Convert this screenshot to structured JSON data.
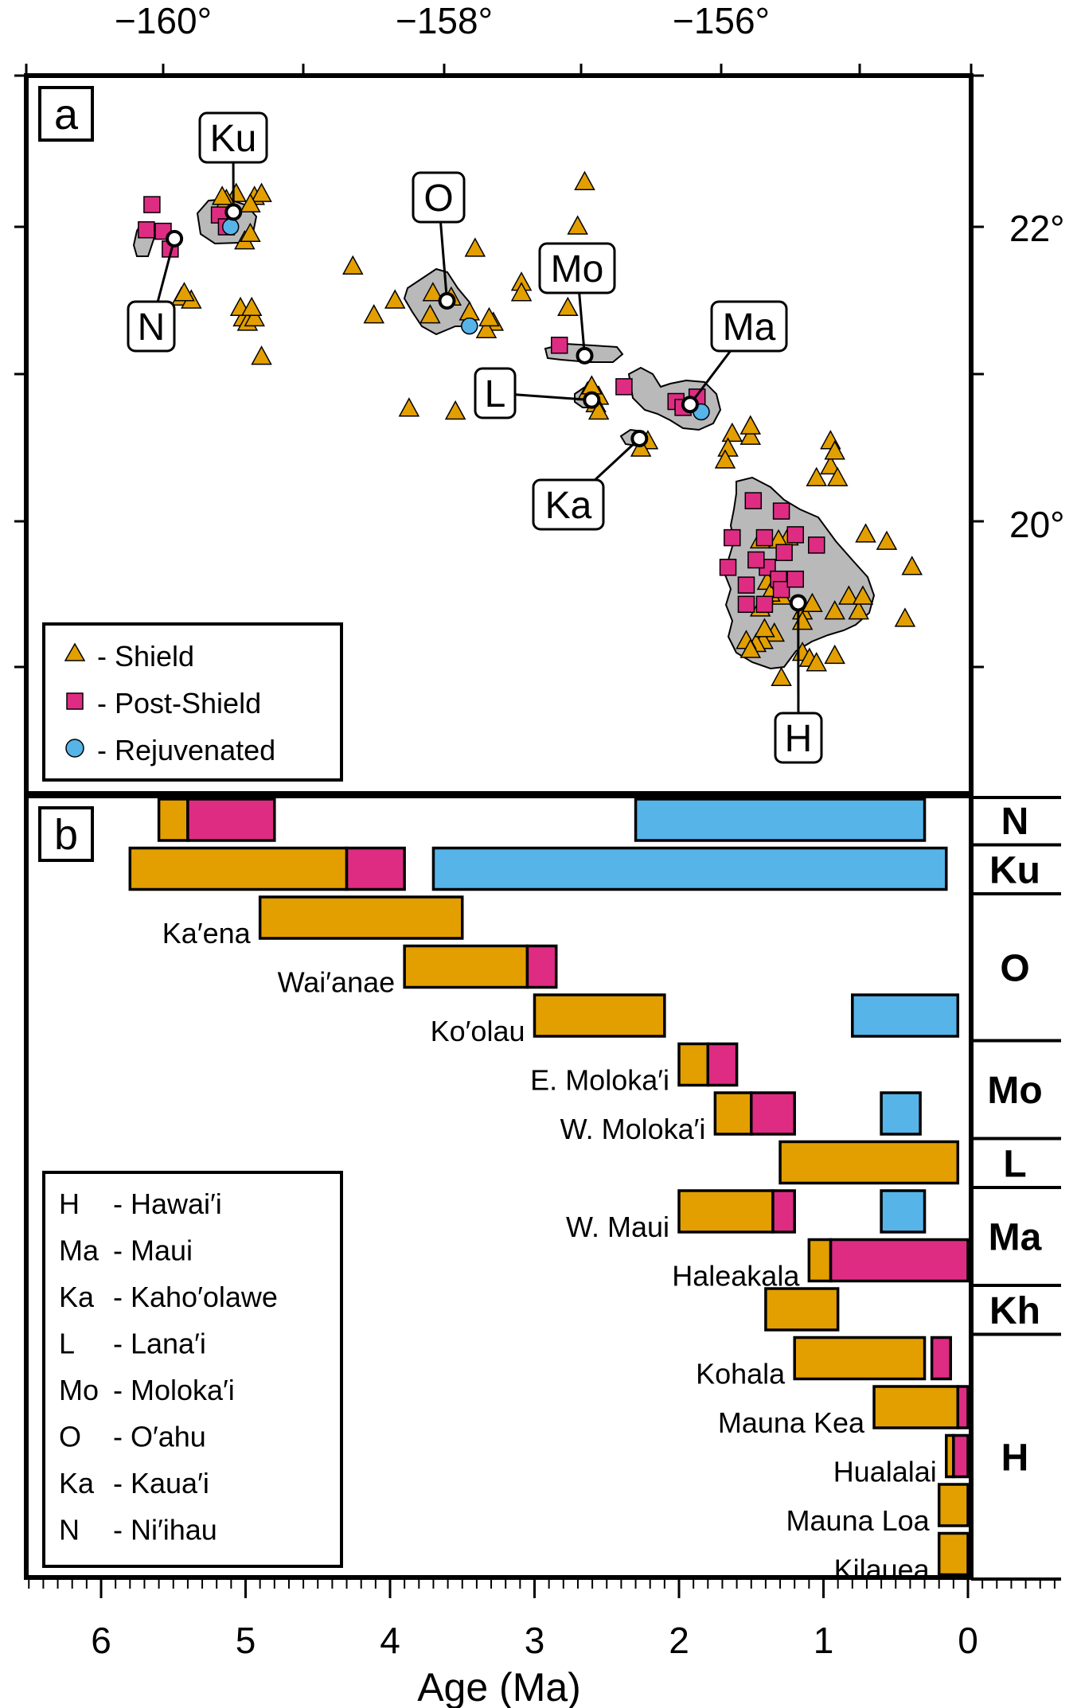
{
  "panel_a": {
    "label": "a",
    "lon_ticks": [
      "−160°",
      "−158°",
      "−156°"
    ],
    "lat_ticks": [
      "22°",
      "20°"
    ],
    "colors": {
      "shield": "#e39f00",
      "post_shield": "#de2c83",
      "rejuvenated": "#56b4e9",
      "land": "#b9b9b9",
      "outline": "#000000"
    },
    "islands": [
      {
        "id": "ni",
        "label": "N",
        "lon": -159.92,
        "lat": 21.92
      },
      {
        "id": "ku",
        "label": "Ku",
        "lon": -159.5,
        "lat": 22.1
      },
      {
        "id": "oa",
        "label": "O",
        "lon": -157.98,
        "lat": 21.5
      },
      {
        "id": "mo",
        "label": "Mo",
        "lon": -157.0,
        "lat": 21.13
      },
      {
        "id": "la",
        "label": "L",
        "lon": -156.95,
        "lat": 20.83
      },
      {
        "id": "ma",
        "label": "Ma",
        "lon": -156.25,
        "lat": 20.8
      },
      {
        "id": "ka",
        "label": "Ka",
        "lon": -156.61,
        "lat": 20.57
      },
      {
        "id": "ha",
        "label": "H",
        "lon": -155.48,
        "lat": 19.46
      }
    ],
    "legend": [
      {
        "symbol": "triangle",
        "text": "- Shield"
      },
      {
        "symbol": "square",
        "text": "- Post-Shield"
      },
      {
        "symbol": "circle",
        "text": "- Rejuvenated"
      }
    ],
    "samples": {
      "shield": [
        [
          -159.87,
          21.52
        ],
        [
          -159.8,
          21.5
        ],
        [
          -159.85,
          21.55
        ],
        [
          -159.43,
          21.38
        ],
        [
          -159.45,
          21.45
        ],
        [
          -159.4,
          21.35
        ],
        [
          -159.35,
          21.38
        ],
        [
          -159.37,
          21.45
        ],
        [
          -159.3,
          21.12
        ],
        [
          -159.48,
          22.22
        ],
        [
          -159.55,
          22.18
        ],
        [
          -159.58,
          22.2
        ],
        [
          -159.35,
          22.2
        ],
        [
          -159.3,
          22.22
        ],
        [
          -159.38,
          22.15
        ],
        [
          -159.42,
          21.9
        ],
        [
          -159.38,
          21.95
        ],
        [
          -158.65,
          21.73
        ],
        [
          -158.5,
          21.4
        ],
        [
          -158.35,
          21.5
        ],
        [
          -158.1,
          21.4
        ],
        [
          -158.08,
          21.55
        ],
        [
          -157.95,
          21.52
        ],
        [
          -157.82,
          21.42
        ],
        [
          -157.78,
          21.85
        ],
        [
          -157.65,
          21.35
        ],
        [
          -157.7,
          21.3
        ],
        [
          -157.68,
          21.38
        ],
        [
          -157.45,
          21.62
        ],
        [
          -157.45,
          21.55
        ],
        [
          -157.0,
          22.3
        ],
        [
          -157.05,
          22.0
        ],
        [
          -157.12,
          21.45
        ],
        [
          -156.98,
          20.88
        ],
        [
          -156.9,
          20.85
        ],
        [
          -156.92,
          20.8
        ],
        [
          -156.9,
          20.75
        ],
        [
          -156.55,
          20.55
        ],
        [
          -156.6,
          20.5
        ],
        [
          -158.25,
          20.77
        ],
        [
          -157.92,
          20.75
        ],
        [
          -155.95,
          20.6
        ],
        [
          -155.82,
          20.58
        ],
        [
          -155.82,
          20.65
        ],
        [
          -155.98,
          20.5
        ],
        [
          -156.0,
          20.42
        ],
        [
          -156.95,
          20.92
        ],
        [
          -155.35,
          20.3
        ],
        [
          -155.25,
          20.38
        ],
        [
          -155.25,
          20.55
        ],
        [
          -155.22,
          20.48
        ],
        [
          -155.2,
          20.3
        ],
        [
          -155.0,
          19.92
        ],
        [
          -154.85,
          19.87
        ],
        [
          -154.67,
          19.7
        ],
        [
          -154.72,
          19.35
        ],
        [
          -155.55,
          19.9
        ],
        [
          -155.62,
          19.88
        ],
        [
          -155.75,
          19.88
        ],
        [
          -155.7,
          19.6
        ],
        [
          -155.6,
          19.5
        ],
        [
          -155.45,
          19.4
        ],
        [
          -155.38,
          19.45
        ],
        [
          -155.45,
          19.33
        ],
        [
          -155.45,
          19.12
        ],
        [
          -155.65,
          19.25
        ],
        [
          -155.73,
          19.2
        ],
        [
          -155.78,
          19.18
        ],
        [
          -155.85,
          19.2
        ],
        [
          -155.82,
          19.14
        ],
        [
          -155.75,
          19.42
        ],
        [
          -155.68,
          19.52
        ],
        [
          -155.72,
          19.28
        ],
        [
          -155.6,
          18.95
        ],
        [
          -155.4,
          19.08
        ],
        [
          -155.35,
          19.05
        ],
        [
          -155.22,
          19.4
        ],
        [
          -155.12,
          19.5
        ],
        [
          -155.05,
          19.4
        ],
        [
          -155.02,
          19.5
        ],
        [
          -155.22,
          19.1
        ]
      ],
      "post_shield": [
        [
          -160.08,
          22.15
        ],
        [
          -160.0,
          21.97
        ],
        [
          -160.12,
          21.98
        ],
        [
          -159.95,
          21.85
        ],
        [
          -159.6,
          22.08
        ],
        [
          -159.55,
          22.0
        ],
        [
          -157.18,
          21.2
        ],
        [
          -156.72,
          20.92
        ],
        [
          -156.35,
          20.82
        ],
        [
          -156.3,
          20.78
        ],
        [
          -156.2,
          20.85
        ],
        [
          -155.8,
          20.15
        ],
        [
          -155.6,
          20.08
        ],
        [
          -155.72,
          19.9
        ],
        [
          -155.58,
          19.8
        ],
        [
          -155.5,
          19.92
        ],
        [
          -155.35,
          19.85
        ],
        [
          -155.7,
          19.7
        ],
        [
          -155.62,
          19.62
        ],
        [
          -155.6,
          19.55
        ],
        [
          -155.5,
          19.62
        ],
        [
          -155.95,
          19.9
        ],
        [
          -155.78,
          19.75
        ],
        [
          -155.85,
          19.58
        ],
        [
          -155.98,
          19.7
        ],
        [
          -155.85,
          19.45
        ],
        [
          -155.72,
          19.45
        ]
      ],
      "rejuvenated": [
        [
          -159.52,
          22.0
        ],
        [
          -157.82,
          21.33
        ],
        [
          -156.17,
          20.75
        ]
      ]
    }
  },
  "panel_b": {
    "label": "b",
    "xlabel": "Age (Ma)",
    "x_ticks": [
      "6",
      "5",
      "4",
      "3",
      "2",
      "1",
      "0"
    ],
    "xlim": [
      6.5,
      -0.65
    ],
    "legend": [
      {
        "abbr": "H",
        "name": "- Hawai′i"
      },
      {
        "abbr": "Ma",
        "name": "- Maui"
      },
      {
        "abbr": "Ka",
        "name": "- Kaho′olawe"
      },
      {
        "abbr": "L",
        "name": "- Lana′i"
      },
      {
        "abbr": "Mo",
        "name": "- Moloka′i"
      },
      {
        "abbr": "O",
        "name": "- O′ahu"
      },
      {
        "abbr": "Ka",
        "name": "- Kaua′i"
      },
      {
        "abbr": "N",
        "name": "- Ni′ihau"
      }
    ],
    "groups": [
      {
        "label": "N",
        "from": 0,
        "to": 1
      },
      {
        "label": "Ku",
        "from": 1,
        "to": 2
      },
      {
        "label": "O",
        "from": 2,
        "to": 5
      },
      {
        "label": "Mo",
        "from": 5,
        "to": 7
      },
      {
        "label": "L",
        "from": 7,
        "to": 8
      },
      {
        "label": "Ma",
        "from": 8,
        "to": 10
      },
      {
        "label": "Kh",
        "from": 10,
        "to": 11
      },
      {
        "label": "H",
        "from": 11,
        "to": 16
      }
    ]
  },
  "chart_data": {
    "type": "bar",
    "orientation": "horizontal",
    "xlabel": "Age (Ma)",
    "x_reversed": true,
    "rows": [
      {
        "name": "",
        "shield": [
          5.6,
          5.4
        ],
        "post_shield": [
          5.4,
          4.8
        ],
        "rejuvenated": [
          2.3,
          0.3
        ]
      },
      {
        "name": "",
        "shield": [
          5.8,
          4.3
        ],
        "post_shield": [
          4.3,
          3.9
        ],
        "rejuvenated": [
          3.7,
          0.15
        ]
      },
      {
        "name": "Ka′ena",
        "shield": [
          4.9,
          3.5
        ]
      },
      {
        "name": "Wai′anae",
        "shield": [
          3.9,
          3.05
        ],
        "post_shield": [
          3.05,
          2.85
        ]
      },
      {
        "name": "Ko′olau",
        "shield": [
          3.0,
          2.1
        ],
        "rejuvenated": [
          0.8,
          0.07
        ]
      },
      {
        "name": "E. Moloka′i",
        "shield": [
          2.0,
          1.8
        ],
        "post_shield": [
          1.8,
          1.6
        ]
      },
      {
        "name": "W. Moloka′i",
        "shield": [
          1.75,
          1.5
        ],
        "post_shield": [
          1.5,
          1.2
        ],
        "rejuvenated": [
          0.6,
          0.33
        ]
      },
      {
        "name": "",
        "shield": [
          1.3,
          0.07
        ]
      },
      {
        "name": "W. Maui",
        "shield": [
          2.0,
          1.35
        ],
        "post_shield": [
          1.35,
          1.2
        ],
        "rejuvenated": [
          0.6,
          0.3
        ]
      },
      {
        "name": "Haleakala",
        "shield": [
          1.1,
          0.95
        ],
        "post_shield": [
          0.95,
          0.0
        ]
      },
      {
        "name": "",
        "shield": [
          1.4,
          0.9
        ]
      },
      {
        "name": "Kohala",
        "shield": [
          1.2,
          0.3
        ],
        "post_shield": [
          0.25,
          0.12
        ]
      },
      {
        "name": "Mauna Kea",
        "shield": [
          0.65,
          0.07
        ],
        "post_shield": [
          0.07,
          0.0
        ]
      },
      {
        "name": "Hualalai",
        "shield": [
          0.15,
          0.1
        ],
        "post_shield": [
          0.1,
          0.0
        ]
      },
      {
        "name": "Mauna Loa",
        "shield": [
          0.2,
          0.0
        ]
      },
      {
        "name": "Kilauea",
        "shield": [
          0.2,
          0.0
        ]
      }
    ]
  }
}
